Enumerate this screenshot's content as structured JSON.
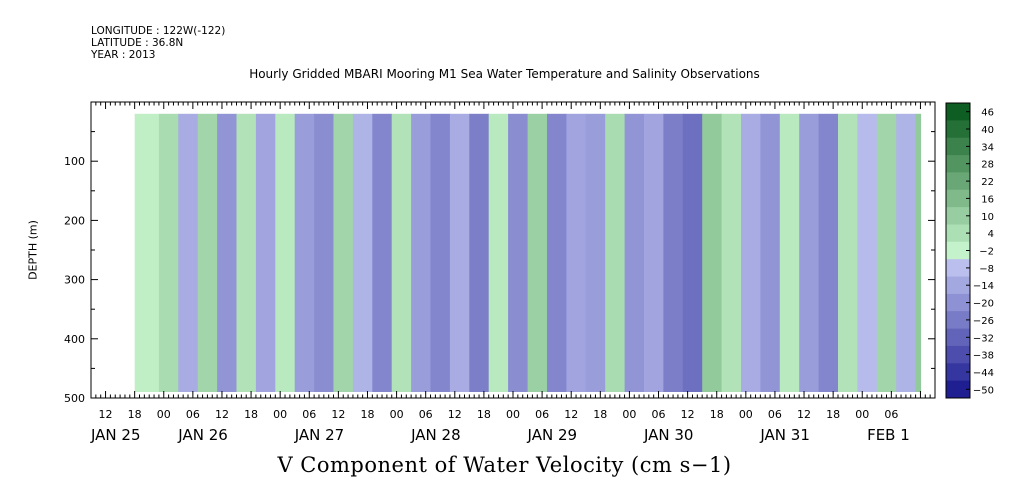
{
  "header": {
    "longitude": "LONGITUDE : 122W(-122)",
    "latitude": "LATITUDE : 36.8N",
    "year": "YEAR : 2013"
  },
  "chart_data": {
    "type": "heatmap",
    "title": "Hourly Gridded MBARI Mooring M1 Sea Water Temperature and Salinity Observations",
    "bottom_title": "V Component of Water Velocity (cm s−1)",
    "ylabel": "DEPTH (m)",
    "x_range_hours": [
      0,
      174
    ],
    "x_start": "JAN 25 09:00",
    "data_x_range_hours": [
      9,
      171
    ],
    "y_range_m": [
      500,
      0
    ],
    "data_depth_range_m": [
      20,
      490
    ],
    "y_ticks": [
      100,
      200,
      300,
      400,
      500
    ],
    "y_tick_labels": [
      "100",
      "200",
      "300",
      "400",
      "500"
    ],
    "hour_ticks": [
      {
        "h": 3,
        "label": "12"
      },
      {
        "h": 9,
        "label": "18"
      },
      {
        "h": 15,
        "label": "00"
      },
      {
        "h": 21,
        "label": "06"
      },
      {
        "h": 27,
        "label": "12"
      },
      {
        "h": 33,
        "label": "18"
      },
      {
        "h": 39,
        "label": "00"
      },
      {
        "h": 45,
        "label": "06"
      },
      {
        "h": 51,
        "label": "12"
      },
      {
        "h": 57,
        "label": "18"
      },
      {
        "h": 63,
        "label": "00"
      },
      {
        "h": 69,
        "label": "06"
      },
      {
        "h": 75,
        "label": "12"
      },
      {
        "h": 81,
        "label": "18"
      },
      {
        "h": 87,
        "label": "00"
      },
      {
        "h": 93,
        "label": "06"
      },
      {
        "h": 99,
        "label": "12"
      },
      {
        "h": 105,
        "label": "18"
      },
      {
        "h": 111,
        "label": "00"
      },
      {
        "h": 117,
        "label": "06"
      },
      {
        "h": 123,
        "label": "12"
      },
      {
        "h": 129,
        "label": "18"
      },
      {
        "h": 135,
        "label": "00"
      },
      {
        "h": 141,
        "label": "06"
      },
      {
        "h": 147,
        "label": "12"
      },
      {
        "h": 153,
        "label": "18"
      },
      {
        "h": 159,
        "label": "00"
      },
      {
        "h": 165,
        "label": "06"
      }
    ],
    "day_labels": [
      {
        "h": 0,
        "label": "JAN 25"
      },
      {
        "h": 18,
        "label": "JAN 26"
      },
      {
        "h": 42,
        "label": "JAN 27"
      },
      {
        "h": 66,
        "label": "JAN 28"
      },
      {
        "h": 90,
        "label": "JAN 29"
      },
      {
        "h": 114,
        "label": "JAN 30"
      },
      {
        "h": 138,
        "label": "JAN 31"
      },
      {
        "h": 160,
        "label": "FEB  1"
      }
    ],
    "colorbar_levels": [
      "46",
      "40",
      "34",
      "28",
      "22",
      "16",
      "10",
      "4",
      "−2",
      "−8",
      "−14",
      "−20",
      "−26",
      "−32",
      "−38",
      "−44",
      "−50"
    ],
    "colorbar_range": [
      -50,
      52
    ],
    "columns_v_cm_s": [
      {
        "h": 9,
        "v": 2
      },
      {
        "h": 14,
        "v": 8
      },
      {
        "h": 18,
        "v": -10
      },
      {
        "h": 22,
        "v": 10
      },
      {
        "h": 26,
        "v": -16
      },
      {
        "h": 30,
        "v": 6
      },
      {
        "h": 34,
        "v": -12
      },
      {
        "h": 38,
        "v": 4
      },
      {
        "h": 42,
        "v": -14
      },
      {
        "h": 46,
        "v": -18
      },
      {
        "h": 50,
        "v": 10
      },
      {
        "h": 54,
        "v": -8
      },
      {
        "h": 58,
        "v": -20
      },
      {
        "h": 62,
        "v": 6
      },
      {
        "h": 66,
        "v": -14
      },
      {
        "h": 70,
        "v": -20
      },
      {
        "h": 74,
        "v": -10
      },
      {
        "h": 78,
        "v": -22
      },
      {
        "h": 82,
        "v": 4
      },
      {
        "h": 86,
        "v": -18
      },
      {
        "h": 90,
        "v": 12
      },
      {
        "h": 94,
        "v": -20
      },
      {
        "h": 98,
        "v": -12
      },
      {
        "h": 102,
        "v": -14
      },
      {
        "h": 106,
        "v": 8
      },
      {
        "h": 110,
        "v": -16
      },
      {
        "h": 114,
        "v": -12
      },
      {
        "h": 118,
        "v": -22
      },
      {
        "h": 122,
        "v": -26
      },
      {
        "h": 126,
        "v": 14
      },
      {
        "h": 130,
        "v": 6
      },
      {
        "h": 134,
        "v": -10
      },
      {
        "h": 138,
        "v": -16
      },
      {
        "h": 142,
        "v": 4
      },
      {
        "h": 146,
        "v": -14
      },
      {
        "h": 150,
        "v": -20
      },
      {
        "h": 154,
        "v": 6
      },
      {
        "h": 158,
        "v": -6
      },
      {
        "h": 162,
        "v": 10
      },
      {
        "h": 166,
        "v": -8
      },
      {
        "h": 170,
        "v": 14
      }
    ]
  }
}
